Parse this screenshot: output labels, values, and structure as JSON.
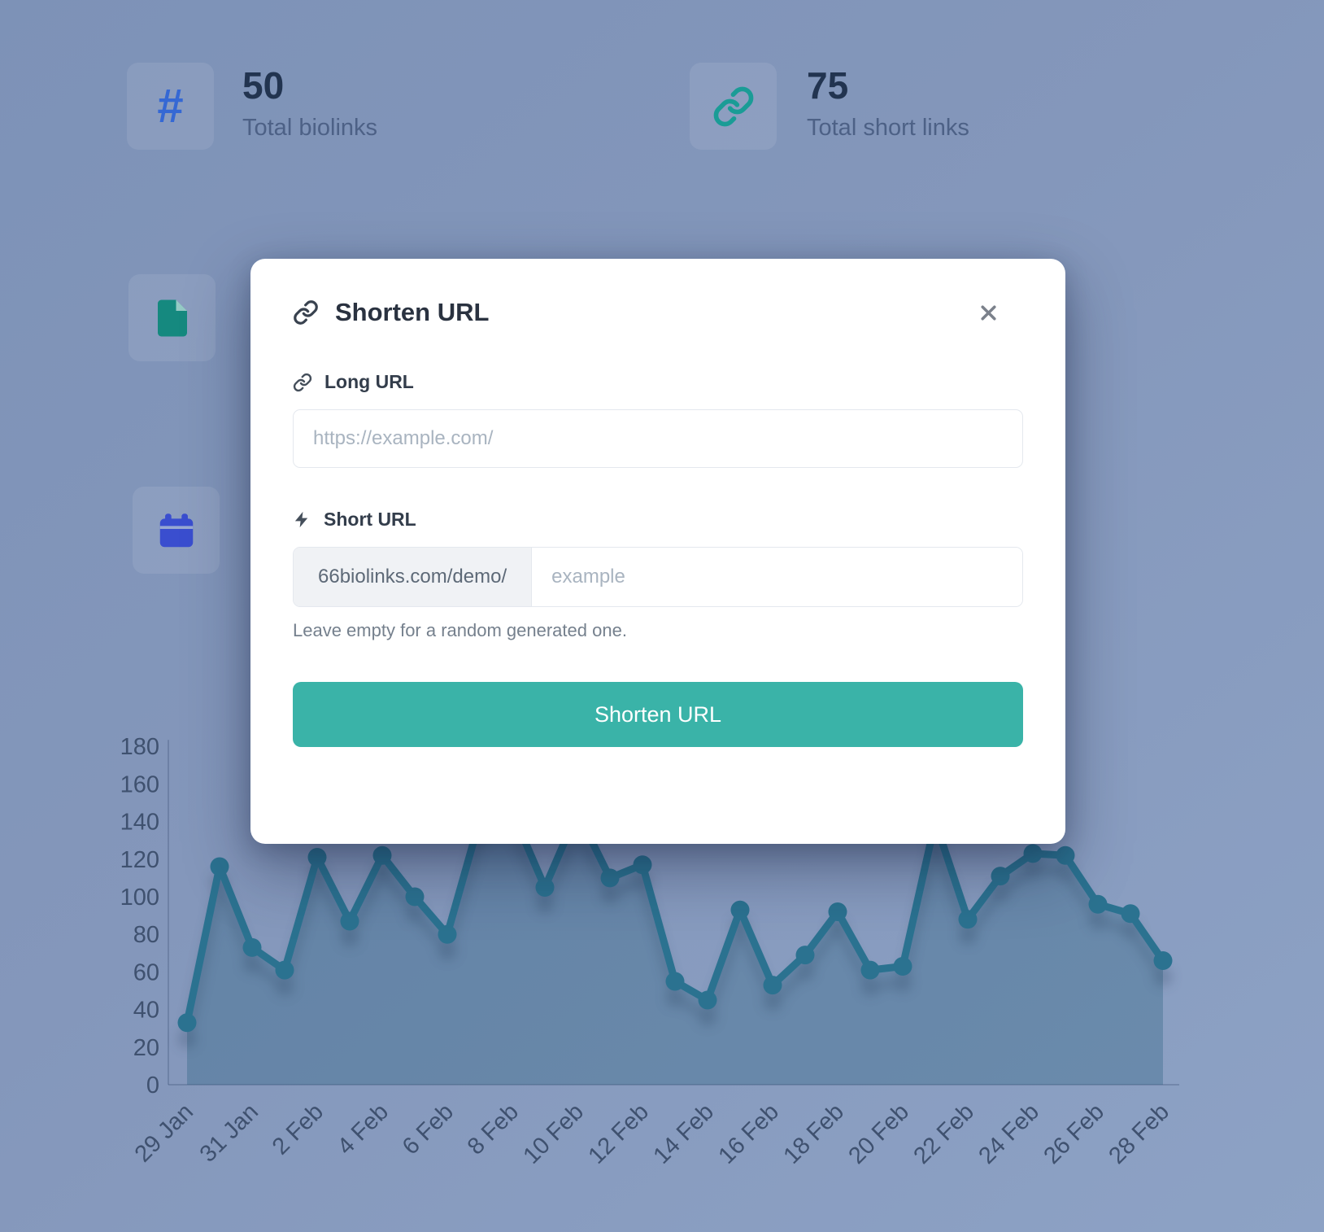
{
  "stats": [
    {
      "icon": "hashtag-icon",
      "value": "50",
      "label": "Total biolinks"
    },
    {
      "icon": "link-icon",
      "value": "75",
      "label": "Total short links"
    },
    {
      "icon": "document-icon"
    },
    {
      "icon": "calendar-icon"
    }
  ],
  "modal": {
    "title": "Shorten URL",
    "long_url": {
      "label": "Long URL",
      "placeholder": "https://example.com/"
    },
    "short_url": {
      "label": "Short URL",
      "prefix": "66biolinks.com/demo/",
      "placeholder": "example",
      "helper": "Leave empty for a random generated one."
    },
    "submit_label": "Shorten URL"
  },
  "colors": {
    "accent_teal": "#3ab3a8",
    "chart_line": "#2b7290",
    "chart_fill": "rgba(30,90,120,0.30)",
    "axis_text": "#3f516f",
    "hashtag": "#3568d4",
    "link": "#1a9c96",
    "document": "#15897f",
    "calendar": "#3a4ecf"
  },
  "chart_data": {
    "type": "line",
    "x": [
      "29 Jan",
      "30 Jan",
      "31 Jan",
      "1 Feb",
      "2 Feb",
      "3 Feb",
      "4 Feb",
      "5 Feb",
      "6 Feb",
      "7 Feb",
      "8 Feb",
      "9 Feb",
      "10 Feb",
      "11 Feb",
      "12 Feb",
      "13 Feb",
      "14 Feb",
      "15 Feb",
      "16 Feb",
      "17 Feb",
      "18 Feb",
      "19 Feb",
      "20 Feb",
      "21 Feb",
      "22 Feb",
      "23 Feb",
      "24 Feb",
      "25 Feb",
      "26 Feb",
      "27 Feb",
      "28 Feb"
    ],
    "values": [
      33,
      116,
      73,
      61,
      121,
      87,
      122,
      100,
      80,
      141,
      145,
      105,
      145,
      110,
      117,
      55,
      45,
      93,
      53,
      69,
      92,
      61,
      63,
      140,
      88,
      111,
      123,
      122,
      96,
      91,
      66
    ],
    "title": "",
    "xlabel": "",
    "ylabel": "",
    "ylim": [
      0,
      180
    ],
    "ytick_step": 20,
    "xtick_every": 2,
    "grid": false,
    "legend": "none",
    "marker": "circle"
  }
}
